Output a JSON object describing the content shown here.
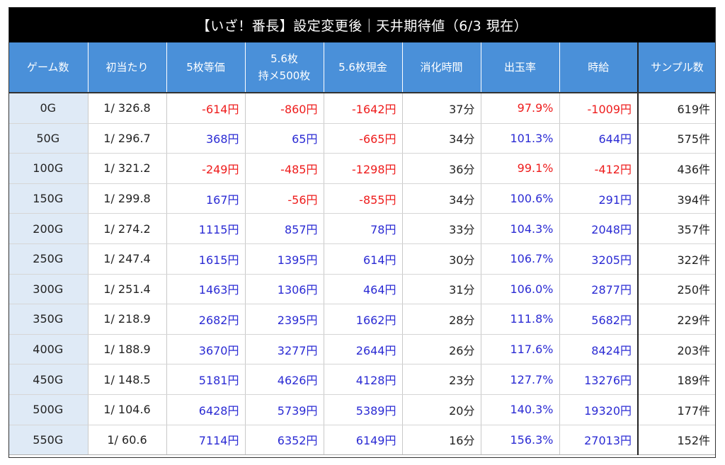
{
  "title": "【いざ！番長】設定変更後｜天井期待値（6/3 現在）",
  "headers": {
    "game": "ゲーム数",
    "hit": "初当たり",
    "v5": "5枚等価",
    "v56_hold_l1": "5.6枚",
    "v56_hold_l2": "持メ500枚",
    "v56_cash": "5.6枚現金",
    "time": "消化時間",
    "payout": "出玉率",
    "wage": "時給",
    "samples": "サンプル数"
  },
  "colors": {
    "header_bg": "#4a90d9",
    "first_col_bg": "#dfeaf6",
    "positive": "#2b2bd4",
    "negative": "#ee1c1c",
    "title_bg": "#000000"
  },
  "rows": [
    {
      "game": "0G",
      "hit": "1/ 326.8",
      "v5": "-614円",
      "v56_hold": "-860円",
      "v56_cash": "-1642円",
      "time": "37分",
      "payout": "97.9%",
      "wage": "-1009円",
      "samples": "619件"
    },
    {
      "game": "50G",
      "hit": "1/ 296.7",
      "v5": "368円",
      "v56_hold": "65円",
      "v56_cash": "-665円",
      "time": "34分",
      "payout": "101.3%",
      "wage": "644円",
      "samples": "575件"
    },
    {
      "game": "100G",
      "hit": "1/ 321.2",
      "v5": "-249円",
      "v56_hold": "-485円",
      "v56_cash": "-1298円",
      "time": "36分",
      "payout": "99.1%",
      "wage": "-412円",
      "samples": "436件"
    },
    {
      "game": "150G",
      "hit": "1/ 299.8",
      "v5": "167円",
      "v56_hold": "-56円",
      "v56_cash": "-855円",
      "time": "34分",
      "payout": "100.6%",
      "wage": "291円",
      "samples": "394件"
    },
    {
      "game": "200G",
      "hit": "1/ 274.2",
      "v5": "1115円",
      "v56_hold": "857円",
      "v56_cash": "78円",
      "time": "33分",
      "payout": "104.3%",
      "wage": "2048円",
      "samples": "357件"
    },
    {
      "game": "250G",
      "hit": "1/ 247.4",
      "v5": "1615円",
      "v56_hold": "1395円",
      "v56_cash": "614円",
      "time": "30分",
      "payout": "106.7%",
      "wage": "3205円",
      "samples": "322件"
    },
    {
      "game": "300G",
      "hit": "1/ 251.4",
      "v5": "1463円",
      "v56_hold": "1306円",
      "v56_cash": "464円",
      "time": "31分",
      "payout": "106.0%",
      "wage": "2877円",
      "samples": "250件"
    },
    {
      "game": "350G",
      "hit": "1/ 218.9",
      "v5": "2682円",
      "v56_hold": "2395円",
      "v56_cash": "1662円",
      "time": "28分",
      "payout": "111.8%",
      "wage": "5682円",
      "samples": "229件"
    },
    {
      "game": "400G",
      "hit": "1/ 188.9",
      "v5": "3670円",
      "v56_hold": "3277円",
      "v56_cash": "2644円",
      "time": "26分",
      "payout": "117.6%",
      "wage": "8424円",
      "samples": "203件"
    },
    {
      "game": "450G",
      "hit": "1/ 148.5",
      "v5": "5181円",
      "v56_hold": "4626円",
      "v56_cash": "4128円",
      "time": "23分",
      "payout": "127.7%",
      "wage": "13276円",
      "samples": "189件"
    },
    {
      "game": "500G",
      "hit": "1/ 104.6",
      "v5": "6428円",
      "v56_hold": "5739円",
      "v56_cash": "5389円",
      "time": "20分",
      "payout": "140.3%",
      "wage": "19320円",
      "samples": "177件"
    },
    {
      "game": "550G",
      "hit": "1/ 60.6",
      "v5": "7114円",
      "v56_hold": "6352円",
      "v56_cash": "6149円",
      "time": "16分",
      "payout": "156.3%",
      "wage": "27013円",
      "samples": "152件"
    }
  ]
}
